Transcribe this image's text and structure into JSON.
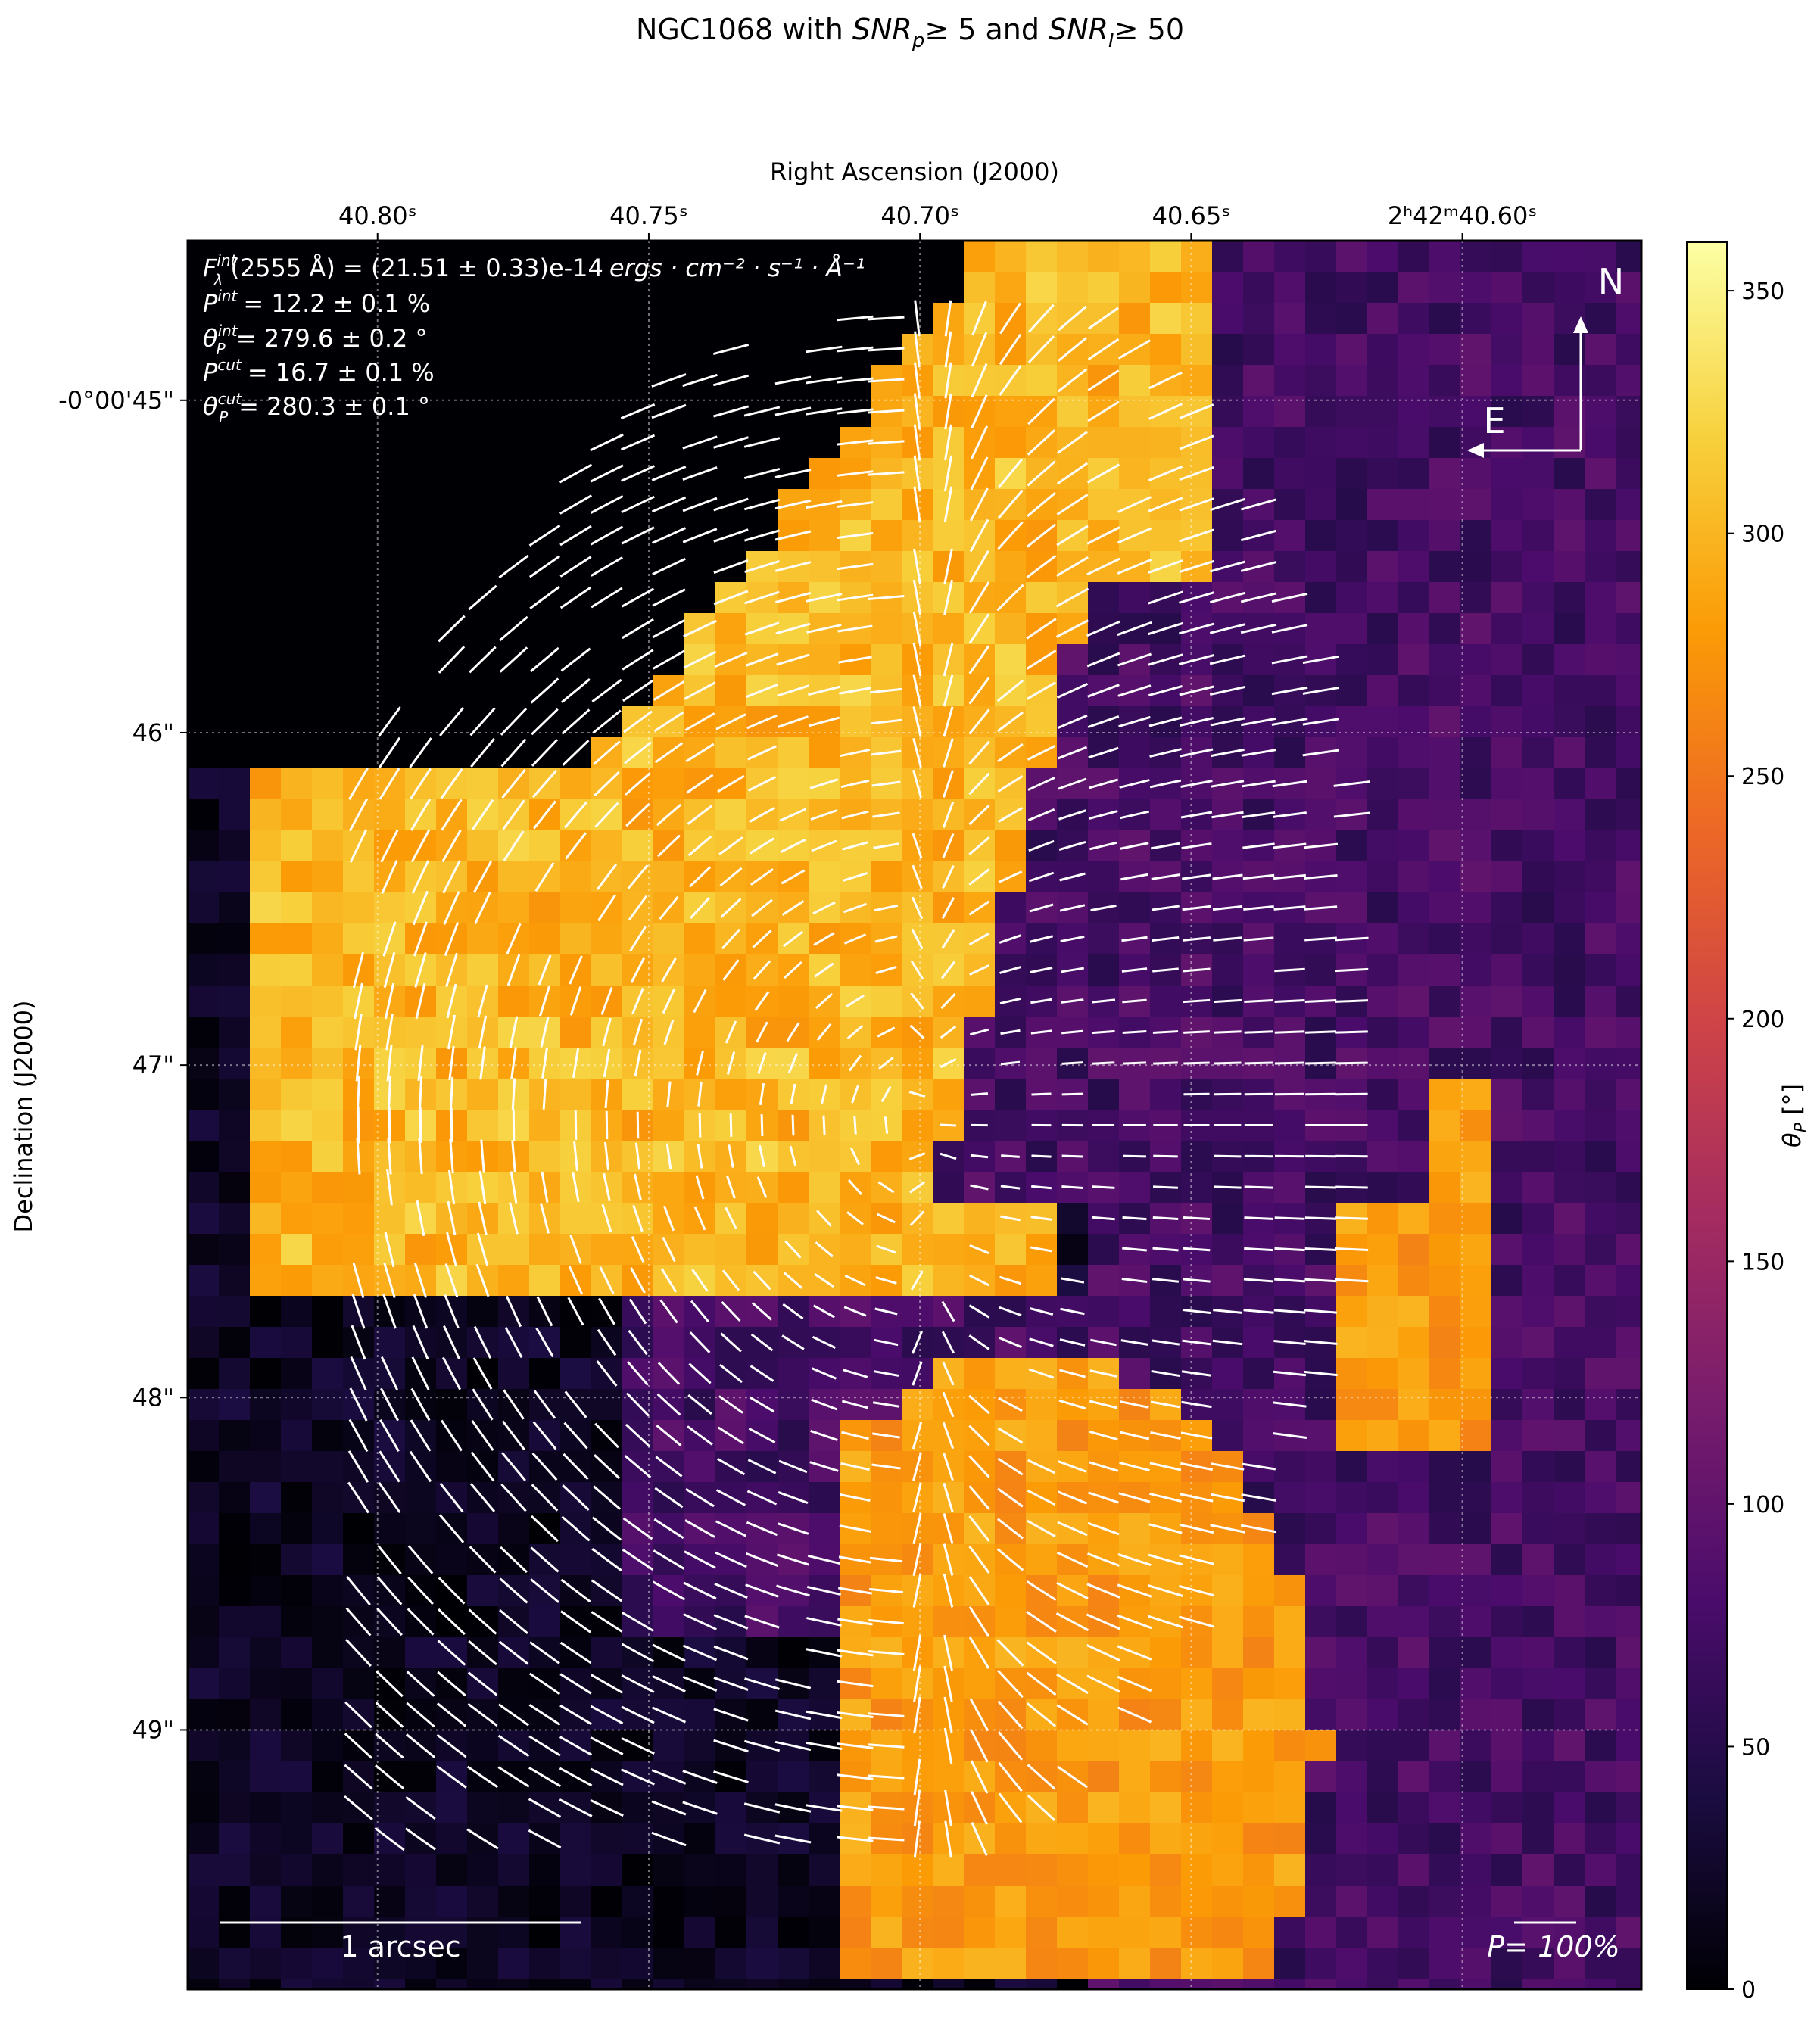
{
  "figure": {
    "title_pre": "NGC1068 with ",
    "title_snrp": "SNR",
    "title_snrp_sub": "p",
    "title_mid": "≥  5 and ",
    "title_snri": "SNR",
    "title_snri_sub": "I",
    "title_post": "≥  50"
  },
  "chart_data": {
    "type": "heatmap",
    "xlabel": "Right Ascension (J2000)",
    "ylabel": "Declination (J2000)",
    "x_ticks": [
      {
        "label": "40.80ˢ",
        "value": 40.8
      },
      {
        "label": "40.75ˢ",
        "value": 40.75
      },
      {
        "label": "40.70ˢ",
        "value": 40.7
      },
      {
        "label": "40.65ˢ",
        "value": 40.65
      },
      {
        "label": "2ʰ42ᵐ40.60ˢ",
        "value": 40.6
      }
    ],
    "y_ticks": [
      {
        "label": "-0°00'45\"",
        "value": 45
      },
      {
        "label": "46\"",
        "value": 46
      },
      {
        "label": "47\"",
        "value": 47
      },
      {
        "label": "48\"",
        "value": 48
      },
      {
        "label": "49\"",
        "value": 49
      }
    ],
    "xlim_ra_seconds": [
      40.835,
      40.567
    ],
    "ylim_dec_arcsec": [
      44.52,
      49.78
    ],
    "colorbar": {
      "label": "θ_P [°]",
      "min": 0,
      "max": 360,
      "ticks": [
        0,
        50,
        100,
        150,
        200,
        250,
        300,
        350
      ],
      "colormap": "inferno",
      "stops": [
        "#000004",
        "#1b0c41",
        "#4a0c6b",
        "#781c6d",
        "#a52c60",
        "#cf4446",
        "#ed6925",
        "#fb9b06",
        "#f7d13d",
        "#fcffa4"
      ]
    },
    "regions": [
      {
        "name": "disk-top-left",
        "angle_deg": 300,
        "desc": "upper left orange-yellow region"
      },
      {
        "name": "cone-east",
        "angle_deg": 75,
        "desc": "purple region east of nucleus"
      },
      {
        "name": "south-orange",
        "angle_deg": 280,
        "desc": "southern orange arc"
      },
      {
        "name": "background",
        "angle_deg": 20,
        "desc": "dark background"
      }
    ],
    "annotations": {
      "flux_label": "(2555 Å) = (21.51 ± 0.33)e-14",
      "flux_units": "ergs · cm⁻² · s⁻¹ · Å⁻¹",
      "p_int": "= 12.2 ± 0.1 %",
      "theta_int": "= 279.6 ± 0.2 °",
      "p_cut": "= 16.7 ± 0.1 %",
      "theta_cut": "= 280.3 ± 0.1 °"
    },
    "compass": {
      "north": "N",
      "east": "E"
    },
    "scale_bar_label": "1 arcsec",
    "vector_scale_label": "P= 100%"
  },
  "colors": {
    "vectors": "#ffffff",
    "frame": "#000000"
  }
}
